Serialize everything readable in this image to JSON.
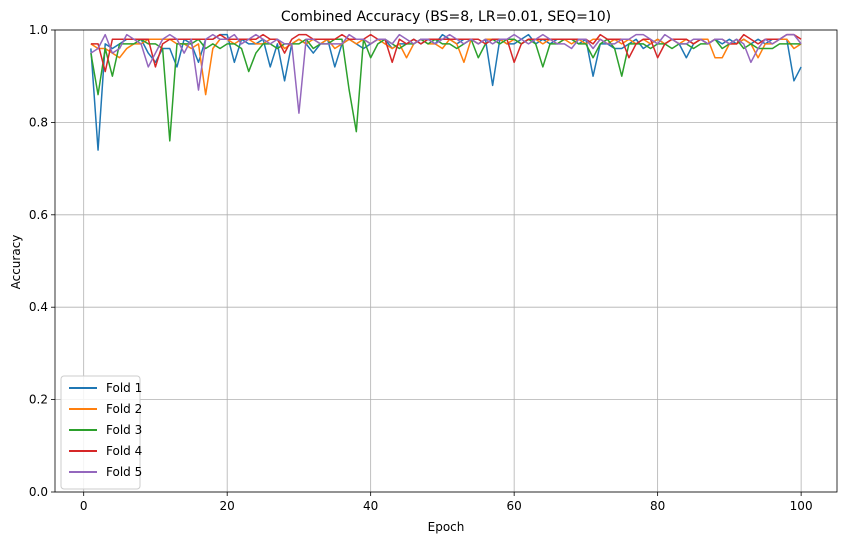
{
  "chart_data": {
    "type": "line",
    "title": "Combined Accuracy (BS=8, LR=0.01, SEQ=10)",
    "xlabel": "Epoch",
    "ylabel": "Accuracy",
    "xlim": [
      -4,
      105
    ],
    "ylim": [
      0.0,
      1.0
    ],
    "xticks": [
      0,
      20,
      40,
      60,
      80,
      100
    ],
    "yticks": [
      0.0,
      0.2,
      0.4,
      0.6,
      0.8,
      1.0
    ],
    "xtick_labels": [
      "0",
      "20",
      "40",
      "60",
      "80",
      "100"
    ],
    "ytick_labels": [
      "0.0",
      "0.2",
      "0.4",
      "0.6",
      "0.8",
      "1.0"
    ],
    "grid": true,
    "legend_position": "lower-left",
    "series": [
      {
        "name": "Fold 1",
        "color": "#1f77b4",
        "values": [
          0.96,
          0.74,
          0.97,
          0.96,
          0.97,
          0.98,
          0.98,
          0.98,
          0.95,
          0.93,
          0.96,
          0.96,
          0.92,
          0.98,
          0.97,
          0.93,
          0.98,
          0.98,
          0.99,
          0.99,
          0.93,
          0.98,
          0.97,
          0.97,
          0.98,
          0.92,
          0.97,
          0.89,
          0.97,
          0.98,
          0.97,
          0.95,
          0.97,
          0.98,
          0.92,
          0.97,
          0.98,
          0.97,
          0.96,
          0.97,
          0.98,
          0.98,
          0.96,
          0.97,
          0.97,
          0.98,
          0.97,
          0.98,
          0.97,
          0.99,
          0.98,
          0.97,
          0.98,
          0.98,
          0.97,
          0.98,
          0.88,
          0.98,
          0.97,
          0.97,
          0.98,
          0.99,
          0.97,
          0.98,
          0.97,
          0.98,
          0.98,
          0.98,
          0.97,
          0.98,
          0.9,
          0.97,
          0.97,
          0.96,
          0.96,
          0.97,
          0.98,
          0.96,
          0.97,
          0.98,
          0.97,
          0.98,
          0.97,
          0.94,
          0.97,
          0.98,
          0.97,
          0.98,
          0.97,
          0.98,
          0.97,
          0.98,
          0.97,
          0.98,
          0.97,
          0.98,
          0.98,
          0.98,
          0.89,
          0.92
        ]
      },
      {
        "name": "Fold 2",
        "color": "#ff7f0e",
        "values": [
          0.97,
          0.96,
          0.96,
          0.95,
          0.94,
          0.96,
          0.97,
          0.97,
          0.98,
          0.98,
          0.98,
          0.98,
          0.97,
          0.97,
          0.96,
          0.97,
          0.86,
          0.96,
          0.98,
          0.98,
          0.97,
          0.98,
          0.98,
          0.97,
          0.97,
          0.98,
          0.98,
          0.96,
          0.97,
          0.98,
          0.97,
          0.98,
          0.97,
          0.98,
          0.96,
          0.97,
          0.98,
          0.97,
          0.98,
          0.97,
          0.98,
          0.97,
          0.96,
          0.97,
          0.94,
          0.97,
          0.98,
          0.97,
          0.97,
          0.96,
          0.98,
          0.97,
          0.93,
          0.98,
          0.97,
          0.98,
          0.98,
          0.98,
          0.97,
          0.98,
          0.97,
          0.98,
          0.98,
          0.97,
          0.98,
          0.97,
          0.98,
          0.97,
          0.98,
          0.97,
          0.98,
          0.98,
          0.97,
          0.98,
          0.97,
          0.98,
          0.97,
          0.98,
          0.97,
          0.98,
          0.97,
          0.98,
          0.97,
          0.98,
          0.97,
          0.98,
          0.98,
          0.94,
          0.94,
          0.97,
          0.97,
          0.98,
          0.97,
          0.94,
          0.97,
          0.97,
          0.98,
          0.98,
          0.96,
          0.97
        ]
      },
      {
        "name": "Fold 3",
        "color": "#2ca02c",
        "values": [
          0.95,
          0.86,
          0.96,
          0.9,
          0.97,
          0.97,
          0.97,
          0.98,
          0.97,
          0.97,
          0.96,
          0.76,
          0.97,
          0.97,
          0.97,
          0.98,
          0.96,
          0.97,
          0.96,
          0.97,
          0.97,
          0.96,
          0.91,
          0.95,
          0.97,
          0.97,
          0.96,
          0.97,
          0.97,
          0.97,
          0.98,
          0.96,
          0.97,
          0.97,
          0.98,
          0.98,
          0.87,
          0.78,
          0.98,
          0.94,
          0.97,
          0.98,
          0.97,
          0.96,
          0.97,
          0.97,
          0.98,
          0.97,
          0.98,
          0.97,
          0.97,
          0.96,
          0.97,
          0.98,
          0.94,
          0.97,
          0.98,
          0.97,
          0.98,
          0.98,
          0.97,
          0.98,
          0.97,
          0.92,
          0.97,
          0.97,
          0.98,
          0.98,
          0.97,
          0.97,
          0.94,
          0.97,
          0.98,
          0.96,
          0.9,
          0.97,
          0.97,
          0.97,
          0.96,
          0.97,
          0.97,
          0.96,
          0.97,
          0.97,
          0.96,
          0.97,
          0.97,
          0.98,
          0.96,
          0.97,
          0.98,
          0.96,
          0.97,
          0.96,
          0.96,
          0.96,
          0.97,
          0.97,
          0.97,
          0.97
        ]
      },
      {
        "name": "Fold 4",
        "color": "#d62728",
        "values": [
          0.97,
          0.97,
          0.91,
          0.98,
          0.98,
          0.98,
          0.98,
          0.98,
          0.98,
          0.92,
          0.97,
          0.98,
          0.98,
          0.98,
          0.98,
          0.98,
          0.98,
          0.98,
          0.99,
          0.98,
          0.98,
          0.98,
          0.98,
          0.98,
          0.99,
          0.98,
          0.98,
          0.95,
          0.98,
          0.99,
          0.99,
          0.98,
          0.98,
          0.98,
          0.98,
          0.99,
          0.98,
          0.98,
          0.98,
          0.99,
          0.98,
          0.98,
          0.93,
          0.98,
          0.97,
          0.98,
          0.97,
          0.98,
          0.98,
          0.98,
          0.98,
          0.98,
          0.98,
          0.98,
          0.98,
          0.97,
          0.98,
          0.98,
          0.98,
          0.93,
          0.97,
          0.98,
          0.98,
          0.98,
          0.98,
          0.98,
          0.98,
          0.98,
          0.98,
          0.98,
          0.97,
          0.99,
          0.98,
          0.98,
          0.98,
          0.94,
          0.97,
          0.98,
          0.98,
          0.94,
          0.97,
          0.98,
          0.98,
          0.98,
          0.97,
          0.98,
          0.97,
          0.98,
          0.98,
          0.97,
          0.97,
          0.99,
          0.98,
          0.97,
          0.98,
          0.98,
          0.98,
          0.99,
          0.99,
          0.98
        ]
      },
      {
        "name": "Fold 5",
        "color": "#9467bd",
        "values": [
          0.95,
          0.96,
          0.99,
          0.95,
          0.96,
          0.99,
          0.98,
          0.97,
          0.92,
          0.95,
          0.98,
          0.99,
          0.98,
          0.95,
          0.98,
          0.87,
          0.98,
          0.99,
          0.98,
          0.98,
          0.99,
          0.97,
          0.98,
          0.99,
          0.98,
          0.97,
          0.98,
          0.97,
          0.97,
          0.82,
          0.98,
          0.98,
          0.97,
          0.97,
          0.97,
          0.97,
          0.99,
          0.98,
          0.98,
          0.97,
          0.98,
          0.98,
          0.97,
          0.99,
          0.98,
          0.97,
          0.98,
          0.98,
          0.97,
          0.98,
          0.99,
          0.98,
          0.97,
          0.98,
          0.97,
          0.98,
          0.97,
          0.98,
          0.98,
          0.99,
          0.98,
          0.97,
          0.98,
          0.99,
          0.98,
          0.97,
          0.97,
          0.96,
          0.98,
          0.98,
          0.96,
          0.98,
          0.97,
          0.97,
          0.98,
          0.98,
          0.99,
          0.99,
          0.98,
          0.97,
          0.99,
          0.98,
          0.97,
          0.97,
          0.98,
          0.98,
          0.97,
          0.98,
          0.98,
          0.97,
          0.98,
          0.97,
          0.93,
          0.96,
          0.98,
          0.97,
          0.98,
          0.99,
          0.99,
          0.97
        ]
      }
    ]
  }
}
